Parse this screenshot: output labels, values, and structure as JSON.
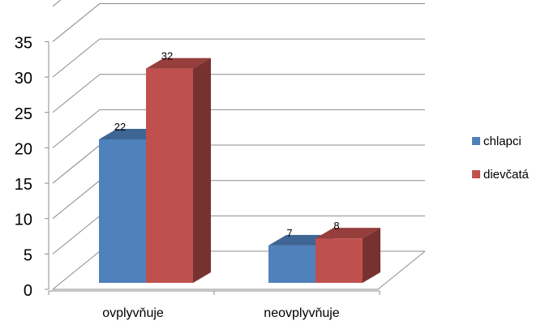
{
  "chart_data": {
    "type": "bar",
    "style": "3d-clustered-column",
    "categories": [
      "ovplyvňuje",
      "neovplyvňuje"
    ],
    "series": [
      {
        "name": "chlapci",
        "values": [
          22,
          7
        ],
        "color": "#4f81bd"
      },
      {
        "name": "dievčatá",
        "values": [
          32,
          8
        ],
        "color": "#c0504d"
      }
    ],
    "data_labels": [
      [
        "22",
        "7"
      ],
      [
        "32",
        "8"
      ]
    ],
    "y_ticks": [
      "0",
      "5",
      "10",
      "15",
      "20",
      "25",
      "30",
      "35"
    ],
    "ylim": [
      0,
      40
    ],
    "grid": true,
    "legend_position": "right"
  }
}
